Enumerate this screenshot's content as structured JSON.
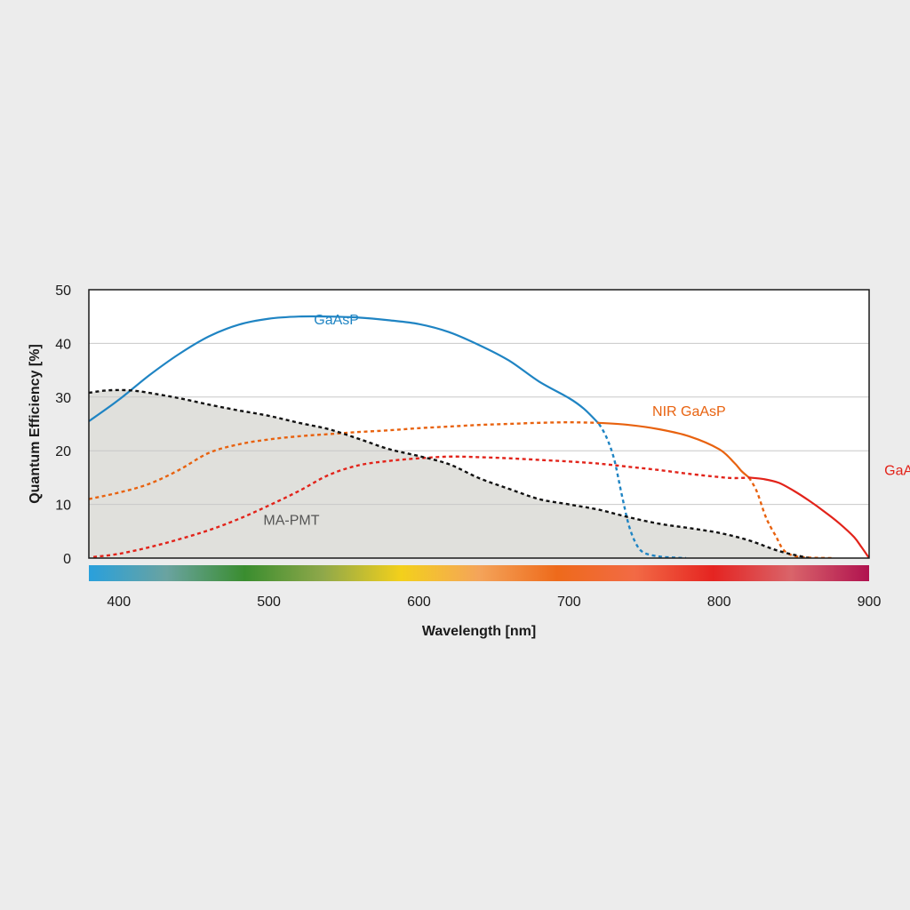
{
  "chart_data": {
    "type": "line",
    "xlabel": "Wavelength [nm]",
    "ylabel": "Quantum Efficiency [%]",
    "xlim": [
      380,
      900
    ],
    "ylim": [
      0,
      50
    ],
    "x_ticks": [
      400,
      500,
      600,
      700,
      800,
      900
    ],
    "y_ticks": [
      0,
      10,
      20,
      30,
      40,
      50
    ],
    "grid": "horizontal",
    "colors": {
      "GaAsP": "#1f84c3",
      "NIR GaAsP": "#e8620f",
      "GaAs": "#e2231a",
      "MA-PMT": "#111111",
      "area_fill": "#e0e0dc",
      "frame": "#1a1a1a",
      "grid": "#c8c8c8"
    },
    "spectrum_bar": [
      "#29a0dc",
      "#6aa3a0",
      "#3a8d2f",
      "#8fa84a",
      "#f3d01b",
      "#f4a45a",
      "#ee6a1b",
      "#f26a45",
      "#e52421",
      "#d9646a",
      "#b0124f"
    ],
    "series": [
      {
        "name": "GaAsP",
        "style": "solid",
        "label_x": 545,
        "label_y": 44.5,
        "x": [
          380,
          400,
          420,
          440,
          460,
          480,
          500,
          520,
          540,
          560,
          580,
          600,
          620,
          640,
          660,
          680,
          700,
          710,
          720
        ],
        "y": [
          25.5,
          29.5,
          34,
          38,
          41.3,
          43.5,
          44.6,
          45,
          45,
          44.8,
          44.3,
          43.6,
          42.1,
          39.7,
          36.8,
          32.9,
          29.8,
          27.8,
          25
        ]
      },
      {
        "name": "GaAsP (extrapolated)",
        "style": "dashed",
        "color": "GaAsP",
        "x": [
          720,
          725,
          730,
          735,
          740,
          745,
          750,
          760,
          770,
          778
        ],
        "y": [
          25,
          22.5,
          18.5,
          12,
          6,
          2.5,
          1,
          0.3,
          0.1,
          0
        ]
      },
      {
        "name": "NIR GaAsP",
        "style": "dashed",
        "label_x": 780,
        "label_y": 27.5,
        "x": [
          380,
          400,
          420,
          440,
          460,
          480,
          500,
          520,
          540,
          560,
          580,
          600,
          620,
          640,
          660,
          680,
          700,
          720
        ],
        "y": [
          11,
          12.2,
          13.8,
          16.4,
          19.6,
          21.2,
          22.1,
          22.7,
          23.1,
          23.5,
          23.8,
          24.2,
          24.5,
          24.8,
          25,
          25.2,
          25.3,
          25.2
        ]
      },
      {
        "name": "NIR GaAsP (measured)",
        "style": "solid",
        "color": "NIR GaAsP",
        "x": [
          720,
          740,
          760,
          780,
          800,
          810,
          815,
          820
        ],
        "y": [
          25.2,
          24.8,
          24,
          22.7,
          20.3,
          17.8,
          16.2,
          15
        ]
      },
      {
        "name": "NIR GaAsP (extrapolated)",
        "style": "dashed",
        "color": "NIR GaAsP",
        "x": [
          820,
          825,
          830,
          833,
          838,
          843,
          850,
          860,
          875
        ],
        "y": [
          15,
          12.5,
          8.5,
          6.5,
          4,
          1.5,
          0.4,
          0.1,
          0
        ]
      },
      {
        "name": "GaAs",
        "style": "dashed",
        "label_x": 922,
        "label_y": 16.5,
        "x": [
          383,
          400,
          420,
          440,
          460,
          480,
          500,
          520,
          540,
          560,
          580,
          600,
          620,
          640,
          660,
          680,
          700,
          720,
          740,
          760,
          780,
          800,
          810,
          820
        ],
        "y": [
          0.2,
          0.8,
          2,
          3.5,
          5.2,
          7.3,
          9.8,
          12.5,
          15.5,
          17.3,
          18.1,
          18.6,
          18.9,
          18.8,
          18.6,
          18.3,
          18,
          17.6,
          17,
          16.4,
          15.7,
          15.1,
          14.9,
          15
        ]
      },
      {
        "name": "GaAs (measured)",
        "style": "solid",
        "color": "GaAs",
        "x": [
          820,
          830,
          840,
          850,
          860,
          870,
          880,
          890,
          895,
          900
        ],
        "y": [
          15,
          14.7,
          14,
          12.5,
          10.7,
          8.7,
          6.5,
          3.9,
          2,
          0
        ]
      },
      {
        "name": "MA-PMT",
        "style": "dashed",
        "fill": true,
        "label_x": 515,
        "label_y": 7.2,
        "label_color": "#555555",
        "x": [
          380,
          390,
          400,
          410,
          420,
          440,
          460,
          480,
          500,
          520,
          540,
          560,
          580,
          600,
          620,
          640,
          660,
          680,
          700,
          720,
          740,
          760,
          780,
          800,
          820,
          840,
          860
        ],
        "y": [
          30.8,
          31.2,
          31.3,
          31.2,
          30.8,
          29.8,
          28.6,
          27.5,
          26.5,
          25.2,
          24,
          22.2,
          20.3,
          19,
          17.5,
          14.9,
          12.9,
          11,
          10,
          9,
          7.6,
          6.4,
          5.6,
          4.7,
          3.3,
          1.3,
          0
        ]
      }
    ]
  }
}
